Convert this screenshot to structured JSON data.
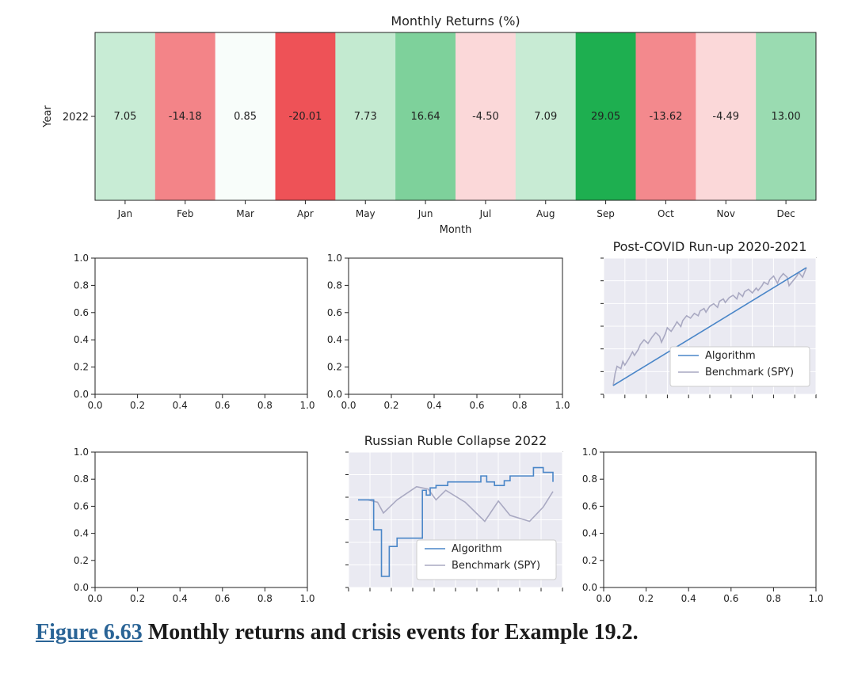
{
  "figure": {
    "caption_link": "Figure 6.63",
    "caption_text": " Monthly returns and crisis events for Example 19.2."
  },
  "colors": {
    "algorithm": "#4a86c8",
    "benchmark": "#a9a9c2",
    "panel_bg": "#eaeaf2",
    "positive": "#1a9641",
    "negative": "#e8404a"
  },
  "chart_data": [
    {
      "type": "heatmap",
      "title": "Monthly Returns (%)",
      "xlabel": "Month",
      "ylabel": "Year",
      "categories": [
        "Jan",
        "Feb",
        "Mar",
        "Apr",
        "May",
        "Jun",
        "Jul",
        "Aug",
        "Sep",
        "Oct",
        "Nov",
        "Dec"
      ],
      "rows": [
        "2022"
      ],
      "values": [
        [
          7.05,
          -14.18,
          0.85,
          -20.01,
          7.73,
          16.64,
          -4.5,
          7.09,
          29.05,
          -13.62,
          -4.49,
          13.0
        ]
      ],
      "value_labels": [
        "7.05",
        "-14.18",
        "0.85",
        "-20.01",
        "7.73",
        "16.64",
        "-4.50",
        "7.09",
        "29.05",
        "-13.62",
        "-4.49",
        "13.00"
      ],
      "colormap": "red-white-green",
      "vmin": -20.01,
      "vmax": 29.05
    },
    {
      "type": "line",
      "title": "",
      "xlim": [
        0,
        1
      ],
      "ylim": [
        0,
        1
      ],
      "xticks": [
        "0.0",
        "0.2",
        "0.4",
        "0.6",
        "0.8",
        "1.0"
      ],
      "yticks": [
        "0.0",
        "0.2",
        "0.4",
        "0.6",
        "0.8",
        "1.0"
      ],
      "series": []
    },
    {
      "type": "line",
      "title": "",
      "xlim": [
        0,
        1
      ],
      "ylim": [
        0,
        1
      ],
      "xticks": [
        "0.0",
        "0.2",
        "0.4",
        "0.6",
        "0.8",
        "1.0"
      ],
      "yticks": [
        "0.0",
        "0.2",
        "0.4",
        "0.6",
        "0.8",
        "1.0"
      ],
      "series": []
    },
    {
      "type": "line",
      "title": "Post-COVID Run-up 2020-2021",
      "legend": "lower-right",
      "grid": true,
      "xlim": [
        0,
        1
      ],
      "ylim": [
        0,
        1
      ],
      "series": [
        {
          "name": "Algorithm",
          "x": [
            0,
            1
          ],
          "y": [
            0.02,
            1.0
          ]
        },
        {
          "name": "Benchmark (SPY)",
          "x": [
            0.0,
            0.01,
            0.02,
            0.04,
            0.05,
            0.06,
            0.08,
            0.1,
            0.11,
            0.13,
            0.14,
            0.16,
            0.18,
            0.2,
            0.22,
            0.24,
            0.25,
            0.27,
            0.28,
            0.3,
            0.32,
            0.33,
            0.35,
            0.36,
            0.38,
            0.4,
            0.42,
            0.44,
            0.45,
            0.47,
            0.48,
            0.5,
            0.52,
            0.54,
            0.55,
            0.57,
            0.58,
            0.6,
            0.62,
            0.64,
            0.65,
            0.67,
            0.68,
            0.7,
            0.72,
            0.74,
            0.75,
            0.77,
            0.78,
            0.8,
            0.81,
            0.83,
            0.85,
            0.86,
            0.88,
            0.9,
            0.91,
            0.93,
            0.95,
            0.96,
            0.98,
            1.0
          ],
          "y": [
            0.02,
            0.12,
            0.18,
            0.16,
            0.22,
            0.19,
            0.24,
            0.3,
            0.27,
            0.32,
            0.36,
            0.4,
            0.37,
            0.42,
            0.46,
            0.43,
            0.38,
            0.45,
            0.5,
            0.47,
            0.52,
            0.55,
            0.51,
            0.56,
            0.6,
            0.58,
            0.62,
            0.6,
            0.64,
            0.66,
            0.63,
            0.68,
            0.7,
            0.67,
            0.72,
            0.74,
            0.71,
            0.75,
            0.77,
            0.74,
            0.79,
            0.76,
            0.8,
            0.82,
            0.79,
            0.83,
            0.81,
            0.85,
            0.88,
            0.86,
            0.9,
            0.93,
            0.87,
            0.91,
            0.95,
            0.92,
            0.85,
            0.89,
            0.93,
            0.96,
            0.92,
            1.0
          ]
        }
      ]
    },
    {
      "type": "line",
      "title": "",
      "xlim": [
        0,
        1
      ],
      "ylim": [
        0,
        1
      ],
      "xticks": [
        "0.0",
        "0.2",
        "0.4",
        "0.6",
        "0.8",
        "1.0"
      ],
      "yticks": [
        "0.0",
        "0.2",
        "0.4",
        "0.6",
        "0.8",
        "1.0"
      ],
      "series": []
    },
    {
      "type": "line",
      "title": "Russian Ruble Collapse 2022",
      "legend": "lower-right",
      "grid": true,
      "xlim": [
        0,
        1
      ],
      "ylim": [
        0,
        1
      ],
      "series": [
        {
          "name": "Algorithm",
          "step": true,
          "x": [
            0.0,
            0.08,
            0.12,
            0.16,
            0.2,
            0.24,
            0.33,
            0.35,
            0.37,
            0.4,
            0.46,
            0.53,
            0.63,
            0.66,
            0.7,
            0.75,
            0.78,
            0.81,
            0.9,
            0.95,
            1.0
          ],
          "y": [
            0.68,
            0.43,
            0.04,
            0.29,
            0.36,
            0.36,
            0.76,
            0.72,
            0.78,
            0.8,
            0.83,
            0.83,
            0.88,
            0.83,
            0.8,
            0.84,
            0.88,
            0.88,
            0.95,
            0.91,
            0.83
          ]
        },
        {
          "name": "Benchmark (SPY)",
          "x": [
            0.0,
            0.05,
            0.1,
            0.13,
            0.2,
            0.3,
            0.36,
            0.4,
            0.45,
            0.55,
            0.65,
            0.72,
            0.78,
            0.88,
            0.95,
            1.0
          ],
          "y": [
            0.68,
            0.68,
            0.66,
            0.57,
            0.68,
            0.79,
            0.77,
            0.68,
            0.76,
            0.66,
            0.5,
            0.67,
            0.55,
            0.5,
            0.62,
            0.75
          ]
        }
      ]
    },
    {
      "type": "line",
      "title": "",
      "xlim": [
        0,
        1
      ],
      "ylim": [
        0,
        1
      ],
      "xticks": [
        "0.0",
        "0.2",
        "0.4",
        "0.6",
        "0.8",
        "1.0"
      ],
      "yticks": [
        "0.0",
        "0.2",
        "0.4",
        "0.6",
        "0.8",
        "1.0"
      ],
      "series": []
    }
  ]
}
